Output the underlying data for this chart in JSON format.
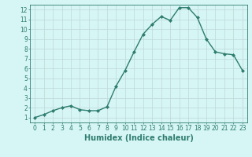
{
  "x": [
    0,
    1,
    2,
    3,
    4,
    5,
    6,
    7,
    8,
    9,
    10,
    11,
    12,
    13,
    14,
    15,
    16,
    17,
    18,
    19,
    20,
    21,
    22,
    23
  ],
  "y": [
    1.0,
    1.3,
    1.7,
    2.0,
    2.2,
    1.8,
    1.7,
    1.7,
    2.1,
    4.2,
    5.8,
    7.7,
    9.5,
    10.5,
    11.3,
    10.9,
    12.2,
    12.2,
    11.2,
    9.0,
    7.7,
    7.5,
    7.4,
    5.8
  ],
  "line_color": "#2e7d6e",
  "marker": "D",
  "marker_size": 2.0,
  "bg_color": "#d6f5f5",
  "grid_color": "#c0d8d8",
  "xlabel": "Humidex (Indice chaleur)",
  "xlim": [
    -0.5,
    23.5
  ],
  "ylim": [
    0.5,
    12.5
  ],
  "yticks": [
    1,
    2,
    3,
    4,
    5,
    6,
    7,
    8,
    9,
    10,
    11,
    12
  ],
  "xticks": [
    0,
    1,
    2,
    3,
    4,
    5,
    6,
    7,
    8,
    9,
    10,
    11,
    12,
    13,
    14,
    15,
    16,
    17,
    18,
    19,
    20,
    21,
    22,
    23
  ],
  "tick_fontsize": 5.5,
  "xlabel_fontsize": 7.0,
  "linewidth": 1.0
}
